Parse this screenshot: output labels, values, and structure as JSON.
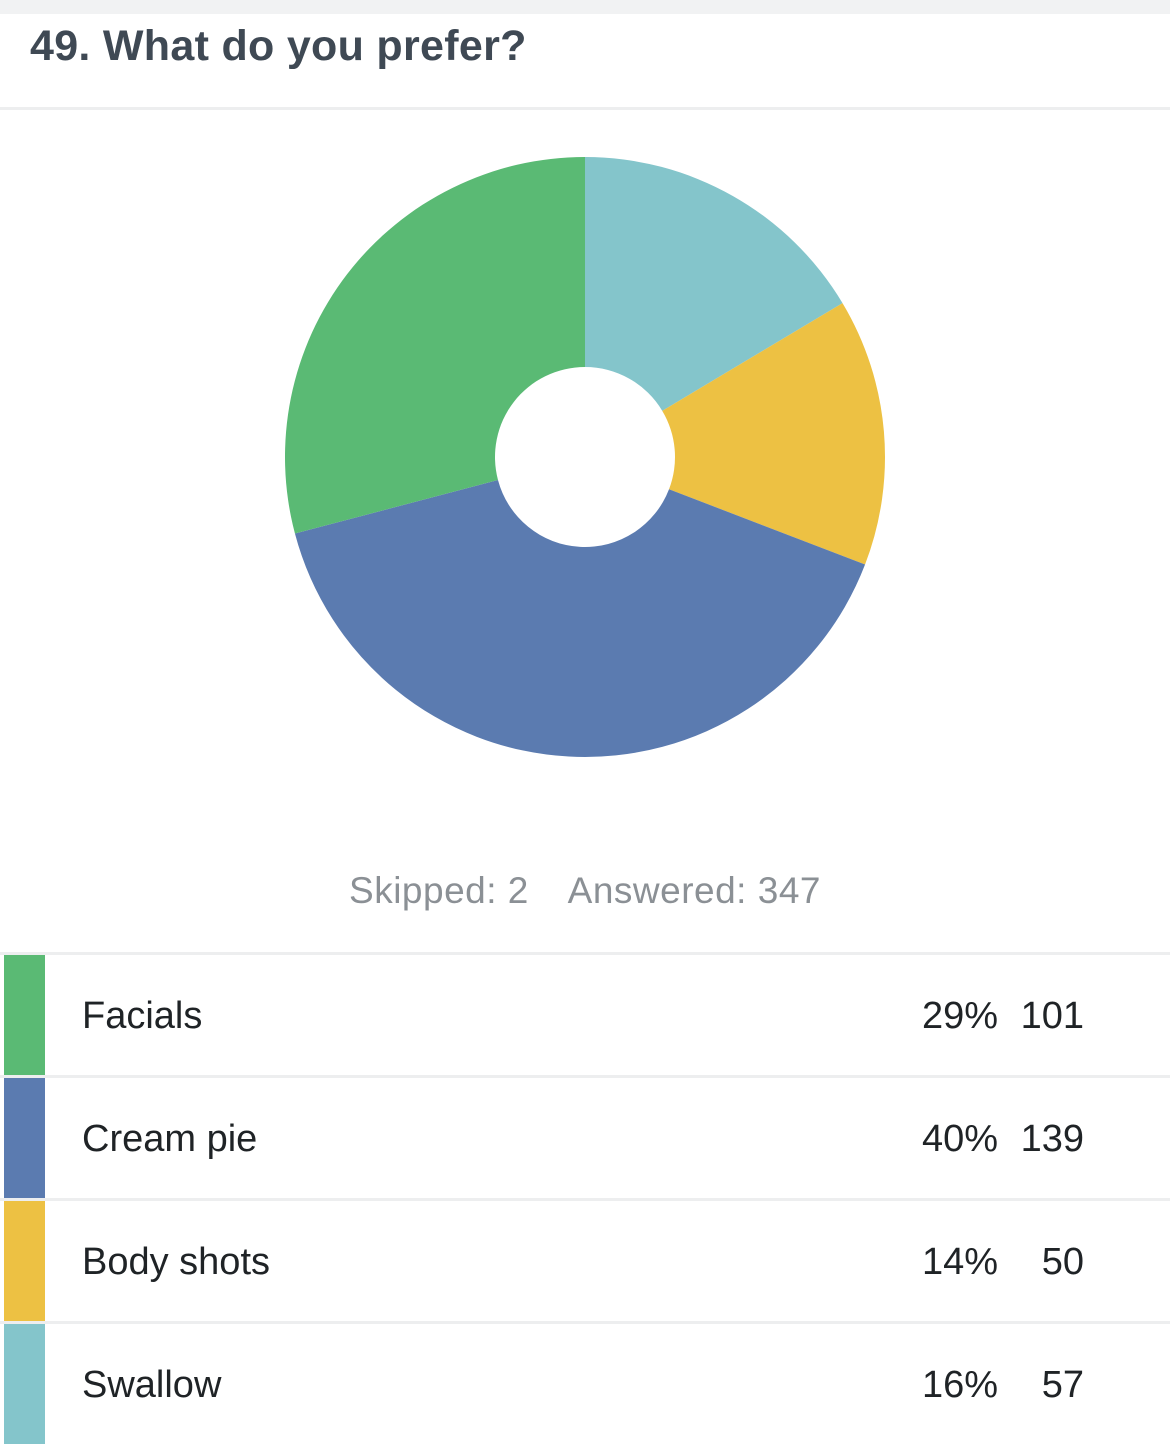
{
  "question": {
    "title": "49. What do you prefer?"
  },
  "summary": {
    "skipped": "Skipped: 2",
    "answered": "Answered: 347"
  },
  "chart_data": {
    "type": "pie",
    "categories": [
      "Facials",
      "Cream pie",
      "Body shots",
      "Swallow"
    ],
    "values": [
      101,
      139,
      50,
      57
    ],
    "percentages": [
      "29%",
      "40%",
      "14%",
      "16%"
    ],
    "colors": [
      "#5aba74",
      "#5b7bb0",
      "#edc143",
      "#84c5cb"
    ],
    "donut": true,
    "start_clockwise_order": [
      "Swallow",
      "Body shots",
      "Cream pie",
      "Facials"
    ]
  },
  "legend": {
    "rows": [
      {
        "label": "Facials",
        "percent": "29%",
        "count": "101",
        "color": "#5aba74"
      },
      {
        "label": "Cream pie",
        "percent": "40%",
        "count": "139",
        "color": "#5b7bb0"
      },
      {
        "label": "Body shots",
        "percent": "14%",
        "count": "50",
        "color": "#edc143"
      },
      {
        "label": "Swallow",
        "percent": "16%",
        "count": "57",
        "color": "#84c5cb"
      }
    ]
  }
}
